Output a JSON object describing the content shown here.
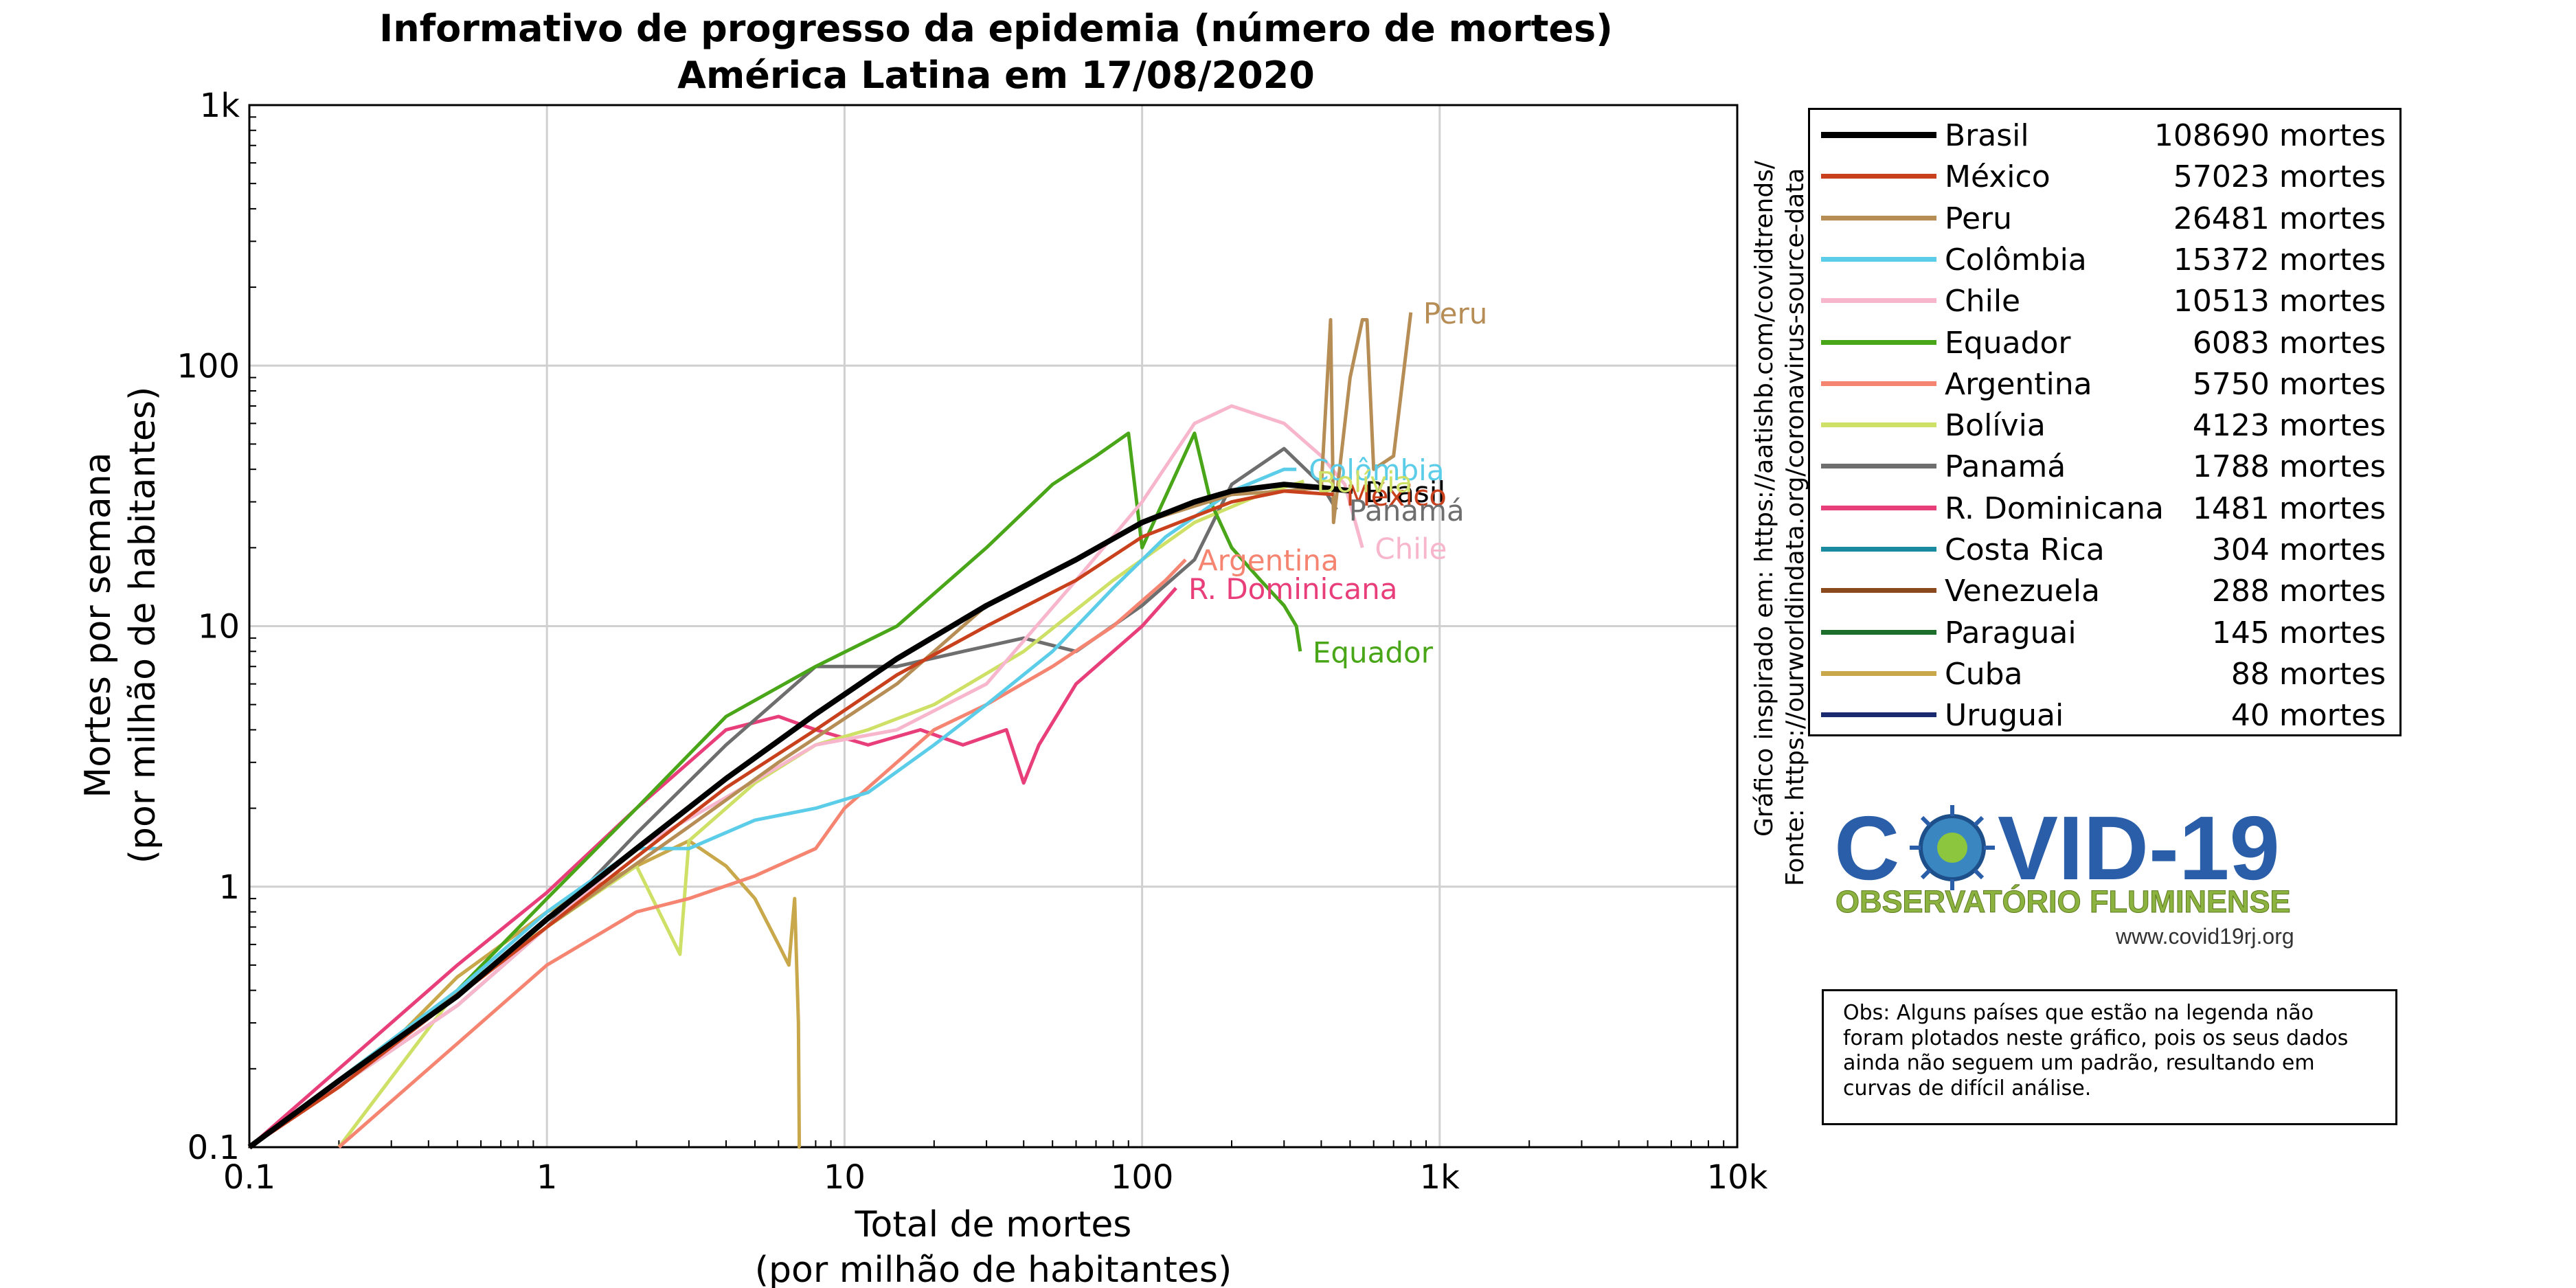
{
  "chart_data": {
    "type": "line",
    "title": "Informativo de progresso da epidemia (número de mortes)",
    "subtitle": "América Latina em 17/08/2020",
    "xlabel": "Total de mortes",
    "xlabel_sub": "(por milhão de habitantes)",
    "ylabel": "Mortes por semana",
    "ylabel_sub": "(por milhão de habitantes)",
    "xscale": "log",
    "yscale": "log",
    "xlim": [
      0.1,
      10000
    ],
    "ylim": [
      0.1,
      1000
    ],
    "x_ticks": [
      0.1,
      1,
      10,
      100,
      1000,
      10000
    ],
    "x_tick_labels": [
      "0.1",
      "1",
      "10",
      "100",
      "1k",
      "10k"
    ],
    "y_ticks": [
      0.1,
      1,
      10,
      100,
      1000
    ],
    "y_tick_labels": [
      "0.1",
      "1",
      "10",
      "100",
      "1k"
    ],
    "grid": true,
    "legend_position": "right, outside plot",
    "series": [
      {
        "name": "Brasil",
        "deaths": "108690 mortes",
        "color": "#000000",
        "width": 8,
        "label": "Brasil",
        "label_color": "#000000",
        "x": [
          0.1,
          0.2,
          0.5,
          1,
          2,
          4,
          8,
          15,
          30,
          60,
          100,
          150,
          200,
          300,
          400,
          510
        ],
        "y": [
          0.1,
          0.18,
          0.38,
          0.75,
          1.4,
          2.6,
          4.6,
          7.5,
          12,
          18,
          25,
          30,
          33,
          35,
          34,
          33
        ]
      },
      {
        "name": "México",
        "deaths": "57023 mortes",
        "color": "#c8401c",
        "width": 5,
        "label": "México",
        "label_color": "#c8401c",
        "x": [
          0.1,
          0.2,
          0.5,
          1,
          2,
          4,
          8,
          15,
          30,
          60,
          100,
          200,
          300,
          440
        ],
        "y": [
          0.1,
          0.17,
          0.38,
          0.7,
          1.3,
          2.4,
          4,
          6.5,
          10,
          15,
          22,
          30,
          33,
          32
        ]
      },
      {
        "name": "Peru",
        "deaths": "26481 mortes",
        "color": "#b58d55",
        "width": 5,
        "label": "Peru",
        "label_color": "#b58d55",
        "x": [
          0.1,
          0.3,
          1,
          3,
          6,
          15,
          30,
          60,
          100,
          200,
          300,
          400,
          430,
          440,
          500,
          550,
          570,
          600,
          700,
          800
        ],
        "y": [
          0.1,
          0.25,
          0.7,
          1.7,
          3,
          6,
          12,
          18,
          25,
          32,
          33,
          34,
          150,
          25,
          90,
          150,
          150,
          40,
          45,
          160
        ]
      },
      {
        "name": "Colômbia",
        "deaths": "15372 mortes",
        "color": "#5bcde8",
        "width": 5,
        "label": "Colômbia",
        "label_color": "#5bcde8",
        "x": [
          0.1,
          0.5,
          1,
          2,
          3,
          5,
          8,
          12,
          20,
          30,
          50,
          80,
          120,
          200,
          300,
          330
        ],
        "y": [
          0.1,
          0.4,
          0.8,
          1.4,
          1.4,
          1.8,
          2,
          2.3,
          3.5,
          5,
          8,
          14,
          22,
          33,
          40,
          40
        ]
      },
      {
        "name": "Chile",
        "deaths": "10513 mortes",
        "color": "#f7b6cc",
        "width": 5,
        "label": "Chile",
        "label_color": "#f7b6cc",
        "x": [
          0.1,
          0.5,
          1,
          2,
          4,
          8,
          15,
          30,
          60,
          100,
          150,
          200,
          300,
          400,
          480,
          550
        ],
        "y": [
          0.1,
          0.35,
          0.7,
          1.4,
          2.2,
          3.5,
          4,
          6,
          15,
          30,
          60,
          70,
          60,
          45,
          35,
          20
        ]
      },
      {
        "name": "Equador",
        "deaths": "6083 mortes",
        "color": "#4aa619",
        "width": 5,
        "label": "Equador",
        "label_color": "#4aa619",
        "x": [
          0.1,
          0.5,
          1,
          2,
          4,
          8,
          15,
          30,
          50,
          70,
          90,
          100,
          150,
          170,
          200,
          250,
          300,
          330,
          340
        ],
        "y": [
          0.1,
          0.4,
          0.9,
          2,
          4.5,
          7,
          10,
          20,
          35,
          45,
          55,
          20,
          55,
          30,
          20,
          15,
          12,
          10,
          8
        ]
      },
      {
        "name": "Argentina",
        "deaths": "5750 mortes",
        "color": "#f58471",
        "width": 5,
        "label": "Argentina",
        "label_color": "#f58471",
        "x": [
          0.2,
          0.5,
          1,
          2,
          3,
          5,
          8,
          10,
          15,
          20,
          30,
          50,
          80,
          120,
          140
        ],
        "y": [
          0.1,
          0.25,
          0.5,
          0.8,
          0.9,
          1.1,
          1.4,
          2,
          3,
          4,
          5,
          7,
          10,
          15,
          18
        ]
      },
      {
        "name": "Bolívia",
        "deaths": "4123 mortes",
        "color": "#cfe066",
        "width": 5,
        "label": "Bolívia",
        "label_color": "#cfe066",
        "x": [
          0.2,
          0.5,
          1,
          2,
          2.8,
          3,
          5,
          8,
          12,
          20,
          40,
          80,
          150,
          250,
          350
        ],
        "y": [
          0.1,
          0.4,
          0.7,
          1.2,
          0.55,
          1.5,
          2.5,
          3.5,
          4,
          5,
          8,
          15,
          25,
          32,
          36
        ]
      },
      {
        "name": "Panamá",
        "deaths": "1788 mortes",
        "color": "#6e6e6e",
        "width": 5,
        "label": "Panamá",
        "label_color": "#6e6e6e",
        "x": [
          0.1,
          0.5,
          1,
          2,
          4,
          8,
          15,
          25,
          40,
          60,
          100,
          150,
          200,
          300,
          400,
          450
        ],
        "y": [
          0.1,
          0.35,
          0.7,
          1.6,
          3.5,
          7,
          7,
          8,
          9,
          8,
          12,
          18,
          35,
          48,
          35,
          28
        ]
      },
      {
        "name": "R. Dominicana",
        "deaths": "1481 mortes",
        "color": "#e83e79",
        "width": 5,
        "label": "R. Dominicana",
        "label_color": "#e83e79",
        "x": [
          0.1,
          0.5,
          1,
          2,
          4,
          6,
          8,
          12,
          18,
          25,
          35,
          40,
          45,
          60,
          80,
          100,
          130
        ],
        "y": [
          0.1,
          0.5,
          0.95,
          2,
          4,
          4.5,
          4,
          3.5,
          4,
          3.5,
          4,
          2.5,
          3.5,
          6,
          8,
          10,
          14
        ]
      },
      {
        "name": "Costa Rica",
        "deaths": "304 mortes",
        "color": "#1a8aa0",
        "width": 5,
        "x": [],
        "y": []
      },
      {
        "name": "Venezuela",
        "deaths": "288 mortes",
        "color": "#8b4a1e",
        "width": 5,
        "x": [],
        "y": []
      },
      {
        "name": "Paraguai",
        "deaths": "145 mortes",
        "color": "#1d6e2b",
        "width": 5,
        "x": [],
        "y": []
      },
      {
        "name": "Cuba",
        "deaths": "88 mortes",
        "color": "#c8a84a",
        "width": 5,
        "label": "",
        "label_color": "#c8a84a",
        "x": [
          0.1,
          0.3,
          0.5,
          1,
          2,
          3,
          4,
          5,
          6,
          6.5,
          6.8,
          7,
          7.05,
          7.1
        ],
        "y": [
          0.1,
          0.25,
          0.45,
          0.8,
          1.2,
          1.5,
          1.2,
          0.9,
          0.6,
          0.5,
          0.9,
          0.3,
          0.1,
          0.1
        ]
      },
      {
        "name": "Uruguai",
        "deaths": "40 mortes",
        "color": "#1a2a6e",
        "width": 5,
        "x": [],
        "y": []
      }
    ]
  },
  "side_credits": {
    "line1": "Gráfico inspirado em: https://aatishb.com/covidtrends/",
    "line2": "Fonte: https://ourworldindata.org/coronavirus-source-data"
  },
  "logo": {
    "main_text": "COVID-19",
    "sub_text": "OBSERVATÓRIO FLUMINENSE",
    "site": "www.covid19rj.org"
  },
  "note": {
    "text": "Obs: Alguns países que estão na legenda não foram plotados neste gráfico, pois os seus dados ainda não seguem um padrão, resultando em curvas de difícil análise."
  }
}
